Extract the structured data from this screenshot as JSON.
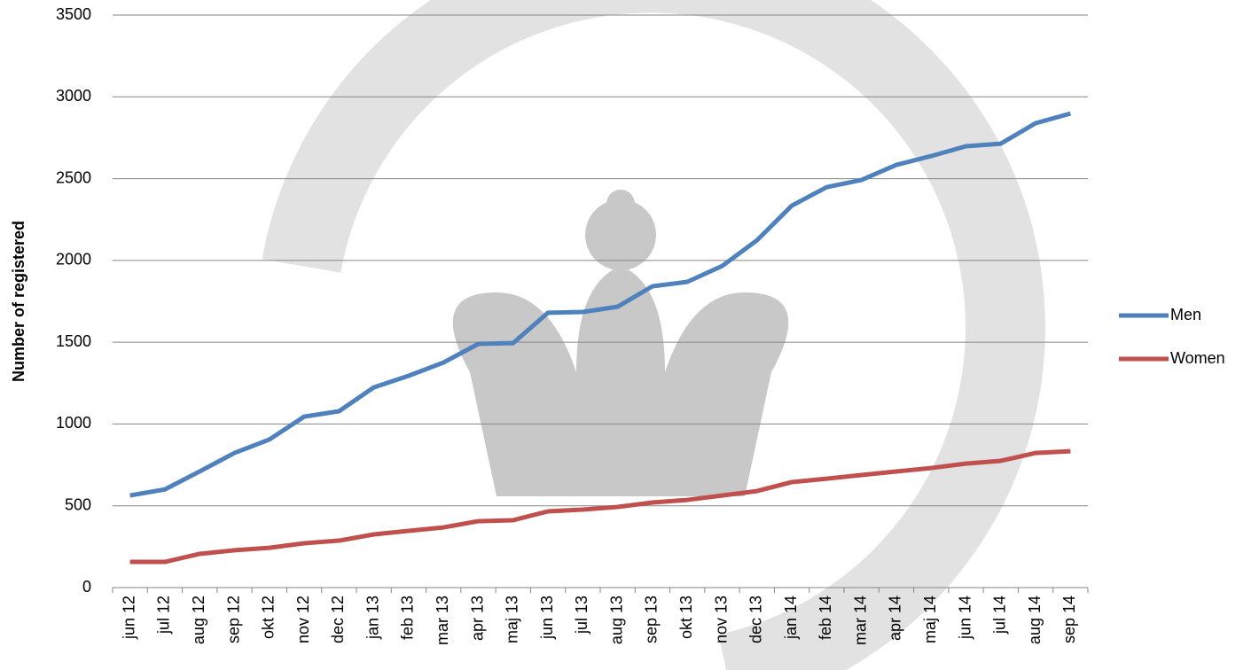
{
  "chart_data": {
    "type": "line",
    "y_label": "Number of registered",
    "categories": [
      "jun 12",
      "jul 12",
      "aug 12",
      "sep 12",
      "okt 12",
      "nov 12",
      "dec 12",
      "jan 13",
      "feb 13",
      "mar 13",
      "apr 13",
      "maj 13",
      "jun 13",
      "jul 13",
      "aug 13",
      "sep 13",
      "okt 13",
      "nov 13",
      "dec 13",
      "jan 14",
      "feb 14",
      "mar 14",
      "apr 14",
      "maj 14",
      "jun 14",
      "jul 14",
      "aug 14",
      "sep 14"
    ],
    "series": [
      {
        "name": "Men",
        "color": "#4f81bd",
        "values": [
          563,
          600,
          710,
          823,
          905,
          1045,
          1078,
          1224,
          1295,
          1376,
          1490,
          1495,
          1680,
          1685,
          1717,
          1842,
          1869,
          1966,
          2123,
          2335,
          2448,
          2492,
          2584,
          2638,
          2698,
          2714,
          2839,
          2898
        ]
      },
      {
        "name": "Women",
        "color": "#c0504d",
        "values": [
          157,
          157,
          206,
          228,
          243,
          271,
          287,
          325,
          347,
          368,
          406,
          412,
          466,
          477,
          493,
          520,
          536,
          563,
          590,
          645,
          666,
          688,
          710,
          731,
          758,
          775,
          823,
          834
        ]
      }
    ],
    "ylim": [
      0,
      3500
    ],
    "yticks": [
      0,
      500,
      1000,
      1500,
      2000,
      2500,
      3000,
      3500
    ],
    "grid": true,
    "legend": "right"
  }
}
